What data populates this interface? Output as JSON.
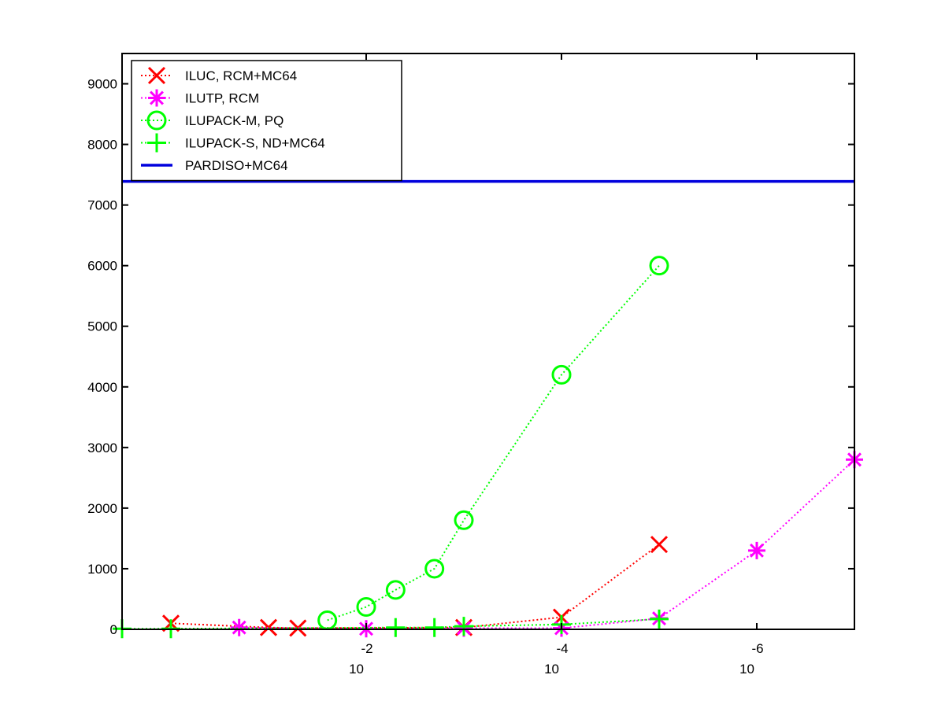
{
  "chart_data": {
    "type": "line",
    "title": "",
    "xlabel": "",
    "ylabel": "",
    "x_scale": "log",
    "x_reversed": true,
    "xlim": [
      3.1623,
      1e-07
    ],
    "ylim": [
      0,
      9500
    ],
    "y_ticks": [
      0,
      1000,
      2000,
      3000,
      4000,
      5000,
      6000,
      7000,
      8000,
      9000
    ],
    "y_tick_labels": [
      "0",
      "1000",
      "2000",
      "3000",
      "4000",
      "5000",
      "6000",
      "7000",
      "8000",
      "9000"
    ],
    "x_ticks": [
      {
        "value": 0.01,
        "base": "10",
        "exponent": "-2"
      },
      {
        "value": 0.0001,
        "base": "10",
        "exponent": "-4"
      },
      {
        "value": 1e-06,
        "base": "10",
        "exponent": "-6"
      }
    ],
    "legend_position": "top-left",
    "grid": false,
    "series": [
      {
        "name": "ILUC, RCM+MC64",
        "color": "#ff0000",
        "marker": "x",
        "line_style": "dotted",
        "points": [
          {
            "x": 1.0,
            "y": 100
          },
          {
            "x": 0.1,
            "y": 30
          },
          {
            "x": 0.05,
            "y": 20
          },
          {
            "x": 0.001,
            "y": 30
          },
          {
            "x": 0.0001,
            "y": 200
          },
          {
            "x": 1e-05,
            "y": 1400
          }
        ]
      },
      {
        "name": "ILUTP, RCM",
        "color": "#ff00ff",
        "marker": "asterisk",
        "line_style": "dotted",
        "points": [
          {
            "x": 0.2,
            "y": 30
          },
          {
            "x": 0.01,
            "y": 10
          },
          {
            "x": 0.001,
            "y": 20
          },
          {
            "x": 0.0001,
            "y": 20
          },
          {
            "x": 1e-05,
            "y": 180
          },
          {
            "x": 1e-06,
            "y": 1300
          },
          {
            "x": 1e-07,
            "y": 2800
          }
        ]
      },
      {
        "name": "ILUPACK-M, PQ",
        "color": "#00ff00",
        "marker": "circle",
        "line_style": "dotted",
        "points": [
          {
            "x": 0.025,
            "y": 150
          },
          {
            "x": 0.01,
            "y": 370
          },
          {
            "x": 0.005,
            "y": 650
          },
          {
            "x": 0.002,
            "y": 1000
          },
          {
            "x": 0.001,
            "y": 1800
          },
          {
            "x": 0.0001,
            "y": 4200
          },
          {
            "x": 1e-05,
            "y": 6000
          }
        ]
      },
      {
        "name": "ILUPACK-S, ND+MC64",
        "color": "#00ff00",
        "marker": "plus",
        "line_style": "dotted",
        "points": [
          {
            "x": 3.1623,
            "y": 10
          },
          {
            "x": 1.0,
            "y": 10
          },
          {
            "x": 0.005,
            "y": 30
          },
          {
            "x": 0.002,
            "y": 30
          },
          {
            "x": 0.001,
            "y": 50
          },
          {
            "x": 0.0001,
            "y": 80
          },
          {
            "x": 1e-05,
            "y": 170
          }
        ]
      },
      {
        "name": "PARDISO+MC64",
        "color": "#0000dd",
        "marker": "none",
        "line_style": "solid",
        "constant_y": 7390
      }
    ]
  }
}
